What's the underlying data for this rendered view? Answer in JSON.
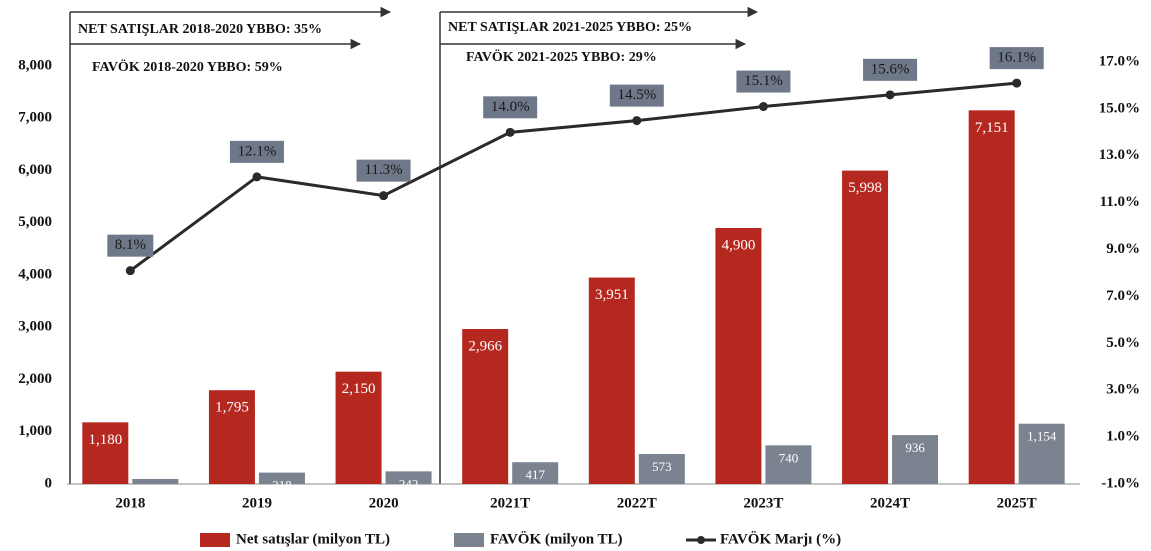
{
  "chart_data": {
    "type": "bar_line",
    "annotations": [
      "NET SATIŞLAR 2018-2020 YBBO: 35%",
      "FAVÖK 2018-2020 YBBO: 59%",
      "NET SATIŞLAR 2021-2025 YBBO: 25%",
      "FAVÖK 2021-2025 YBBO: 29%"
    ],
    "categories": [
      "2018",
      "2019",
      "2020",
      "2021T",
      "2022T",
      "2023T",
      "2024T",
      "2025T"
    ],
    "series": [
      {
        "name": "Net satışlar (milyon TL)",
        "color": "#b5281f",
        "type": "bar",
        "values": [
          1180,
          1795,
          2150,
          2966,
          3951,
          4900,
          5998,
          7151
        ],
        "value_labels": [
          "1,180",
          "1,795",
          "2,150",
          "2,966",
          "3,951",
          "4,900",
          "5,998",
          "7,151"
        ]
      },
      {
        "name": "FAVÖK (milyon  TL)",
        "color": "#7b8290",
        "type": "bar",
        "values": [
          96,
          218,
          242,
          417,
          573,
          740,
          936,
          1154
        ],
        "value_labels": [
          "96",
          "218",
          "242",
          "417",
          "573",
          "740",
          "936",
          "1,154"
        ]
      },
      {
        "name": "FAVÖK Marjı (%)",
        "color": "#2a2a2a",
        "type": "line",
        "axis": "y2",
        "values": [
          8.1,
          12.1,
          11.3,
          14.0,
          14.5,
          15.1,
          15.6,
          16.1
        ],
        "value_labels": [
          "8.1%",
          "12.1%",
          "11.3%",
          "14.0%",
          "14.5%",
          "15.1%",
          "15.6%",
          "16.1%"
        ]
      }
    ],
    "ylim": [
      0,
      8000
    ],
    "yticks": [
      0,
      {
        "value": 1000,
        "label": "1,000"
      },
      {
        "value": 2000,
        "label": "2,000"
      },
      {
        "value": 3000,
        "label": "3,000"
      },
      {
        "value": 4000,
        "label": "4,000"
      },
      {
        "value": 5000,
        "label": "5,000"
      },
      {
        "value": 6000,
        "label": "6,000"
      },
      {
        "value": 7000,
        "label": "7,000"
      },
      {
        "value": 8000,
        "label": "8,000"
      }
    ],
    "y2lim": [
      -1,
      17
    ],
    "y2ticks": [
      {
        "value": -1,
        "label": "-1.0%"
      },
      {
        "value": 1,
        "label": "1.0%"
      },
      {
        "value": 3,
        "label": "3.0%"
      },
      {
        "value": 5,
        "label": "5.0%"
      },
      {
        "value": 7,
        "label": "7.0%"
      },
      {
        "value": 9,
        "label": "9.0%"
      },
      {
        "value": 11,
        "label": "11.0%"
      },
      {
        "value": 13,
        "label": "13.0%"
      },
      {
        "value": 15,
        "label": "15.0%"
      },
      {
        "value": 17,
        "label": "17.0%"
      }
    ],
    "legend": "bottom"
  }
}
